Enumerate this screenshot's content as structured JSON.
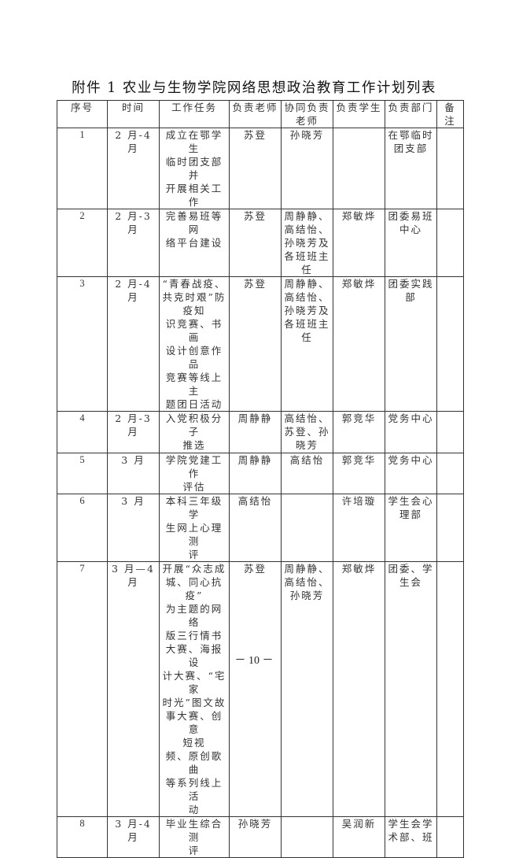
{
  "title": "附件 1  农业与生物学院网络思想政治教育工作计划列表",
  "headers": [
    "序号",
    "时间",
    "工作任务",
    "负责老师",
    "协同负责\n老师",
    "负责学生",
    "负责部门",
    "备\n注"
  ],
  "rows": [
    [
      "1",
      "2 月-4 月",
      "成立在鄂学生\n临时团支部并\n开展相关工作",
      "苏登",
      "孙晓芳",
      "",
      "在鄂临时\n团支部",
      ""
    ],
    [
      "2",
      "2 月-3 月",
      "完善易班等网\n络平台建设",
      "苏登",
      "周静静、\n高结怡、\n孙晓芳及\n各班班主\n任",
      "郑敏烨",
      "团委易班\n中心",
      ""
    ],
    [
      "3",
      "2 月-4 月",
      "“青春战疫、\n共克时艰”防\n疫知\n识竞赛、书画\n设计创意作品\n竞赛等线上主\n题团日活动",
      "苏登",
      "周静静、\n高结怡、\n孙晓芳及\n各班班主\n任",
      "郑敏烨",
      "团委实践\n部",
      ""
    ],
    [
      "4",
      "2 月-3 月",
      "入党积极分子\n推选",
      "周静静",
      "高结怡、\n苏登、孙\n晓芳",
      "郭竞华",
      "党务中心",
      ""
    ],
    [
      "5",
      "3 月",
      "学院党建工作\n评估",
      "周静静",
      "高结怡",
      "郭竞华",
      "党务中心",
      ""
    ],
    [
      "6",
      "3 月",
      "本科三年级学\n生网上心理测\n评",
      "高结怡",
      "",
      "许培璇",
      "学生会心\n理部",
      ""
    ],
    [
      "7",
      "3 月—4\n月",
      "开展“众志成\n城、同心抗疫”\n为主题的网络\n版三行情书\n大赛、海报设\n计大赛、“宅家\n时光”图文故\n事大赛、创意\n短视\n频、原创歌曲\n等系列线上活\n动",
      "苏登",
      "周静静、\n高结怡、\n孙晓芳",
      "郑敏烨",
      "团委、学\n生会",
      ""
    ],
    [
      "8",
      "3 月-4 月",
      "毕业生综合测\n评",
      "孙晓芳",
      "",
      "吴润新",
      "学生会学\n术部、班",
      ""
    ]
  ],
  "page_number": "－ 10 －"
}
